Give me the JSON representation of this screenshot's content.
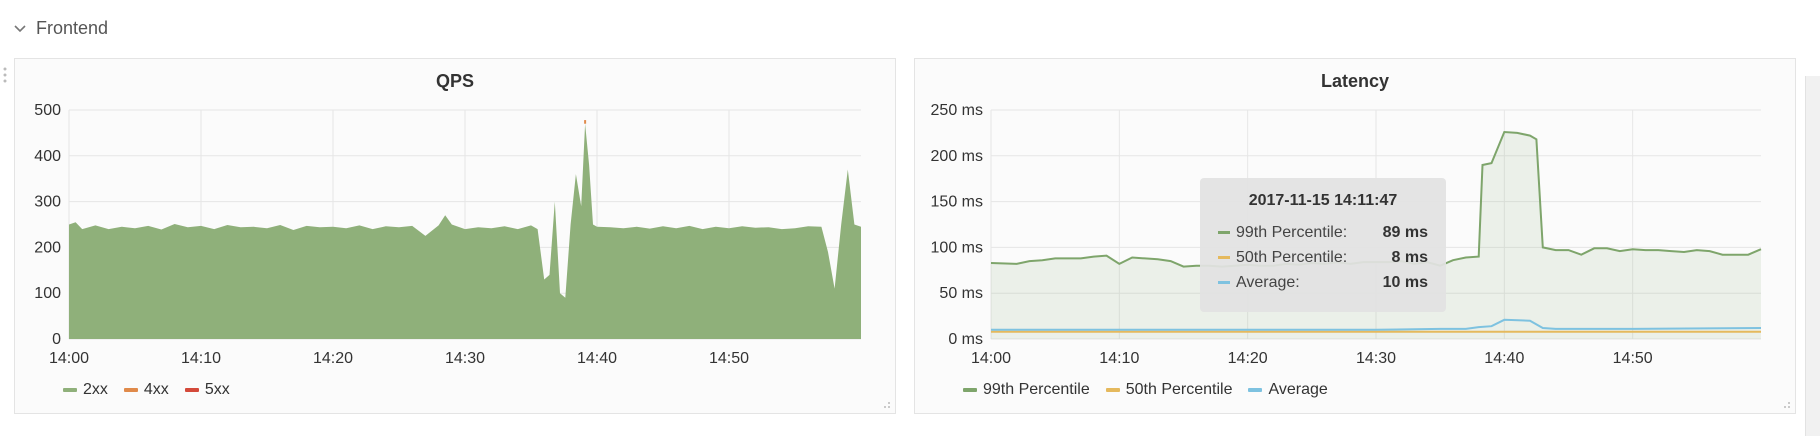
{
  "row": {
    "title": "Frontend",
    "icon": "chevron-down-icon"
  },
  "colors": {
    "s2xx": "#8fb07a",
    "s4xx": "#e08a4a",
    "s5xx": "#d44a3a",
    "p99": "#7ea56b",
    "p50": "#e5b95d",
    "avg": "#7ec2e0",
    "grid": "#e6e6e6",
    "axis": "#333333"
  },
  "qps": {
    "title": "QPS",
    "legend": [
      {
        "label": "2xx",
        "color": "#8fb07a"
      },
      {
        "label": "4xx",
        "color": "#e08a4a"
      },
      {
        "label": "5xx",
        "color": "#d44a3a"
      }
    ],
    "chart_data": {
      "type": "area",
      "title": "QPS",
      "xlabel": "",
      "ylabel": "",
      "x_ticks": [
        "14:00",
        "14:10",
        "14:20",
        "14:30",
        "14:40",
        "14:50"
      ],
      "y_ticks": [
        "0",
        "100",
        "200",
        "300",
        "400",
        "500"
      ],
      "ylim": [
        0,
        500
      ],
      "xlim_minutes": [
        0,
        60
      ],
      "grid": true,
      "legend_position": "bottom-left",
      "series": [
        {
          "name": "2xx",
          "x_minutes": [
            0,
            0.5,
            1,
            2,
            3,
            4,
            5,
            6,
            7,
            8,
            9,
            10,
            11,
            12,
            13,
            14,
            15,
            16,
            17,
            18,
            19,
            20,
            21,
            22,
            23,
            24,
            25,
            26,
            27,
            28,
            28.5,
            29,
            30,
            31,
            32,
            33,
            34,
            35,
            35.5,
            36,
            36.4,
            36.8,
            37.2,
            37.6,
            38,
            38.4,
            38.8,
            39.1,
            39.4,
            39.7,
            40,
            41,
            42,
            43,
            44,
            45,
            46,
            47,
            48,
            49,
            50,
            51,
            52,
            53,
            54,
            55,
            56,
            57,
            57.5,
            58,
            58.5,
            59,
            59.5,
            60
          ],
          "values": [
            250,
            255,
            240,
            248,
            240,
            245,
            242,
            247,
            239,
            251,
            244,
            247,
            240,
            249,
            244,
            245,
            242,
            249,
            238,
            247,
            244,
            245,
            242,
            248,
            240,
            246,
            244,
            247,
            225,
            248,
            270,
            250,
            240,
            244,
            242,
            246,
            240,
            248,
            240,
            130,
            140,
            300,
            100,
            90,
            250,
            360,
            290,
            470,
            380,
            250,
            245,
            244,
            242,
            245,
            241,
            246,
            242,
            247,
            240,
            245,
            242,
            246,
            243,
            244,
            240,
            242,
            246,
            245,
            190,
            110,
            250,
            370,
            250,
            245
          ]
        },
        {
          "name": "4xx",
          "values_note": "near zero",
          "peak_value": 478
        },
        {
          "name": "5xx",
          "values_note": "near zero"
        }
      ]
    }
  },
  "latency": {
    "title": "Latency",
    "legend": [
      {
        "label": "99th Percentile",
        "color": "#7ea56b"
      },
      {
        "label": "50th Percentile",
        "color": "#e5b95d"
      },
      {
        "label": "Average",
        "color": "#7ec2e0"
      }
    ],
    "chart_data": {
      "type": "line",
      "title": "Latency",
      "xlabel": "",
      "ylabel": "",
      "x_ticks": [
        "14:00",
        "14:10",
        "14:20",
        "14:30",
        "14:40",
        "14:50"
      ],
      "y_ticks": [
        "0 ms",
        "50 ms",
        "100 ms",
        "150 ms",
        "200 ms",
        "250 ms"
      ],
      "ylim": [
        0,
        250
      ],
      "xlim_minutes": [
        0,
        60
      ],
      "grid": true,
      "legend_position": "bottom-left",
      "series": [
        {
          "name": "99th Percentile",
          "fill": true,
          "x_minutes": [
            0,
            2,
            3,
            4,
            5,
            6,
            7,
            8,
            9,
            10,
            11,
            12,
            13,
            14,
            15,
            16,
            17,
            18,
            19,
            20,
            21,
            22,
            23,
            24,
            25,
            26,
            27,
            28,
            29,
            30,
            31,
            32,
            33,
            34,
            35,
            36,
            37,
            38,
            38.3,
            39,
            40,
            41,
            42,
            42.5,
            43,
            44,
            45,
            46,
            47,
            48,
            49,
            50,
            51,
            52,
            53,
            54,
            55,
            56,
            57,
            58,
            59,
            60
          ],
          "values": [
            83,
            82,
            85,
            86,
            88,
            88,
            88,
            90,
            91,
            82,
            89,
            88,
            87,
            85,
            79,
            80,
            80,
            79,
            80,
            81,
            80,
            80,
            82,
            81,
            83,
            82,
            84,
            82,
            84,
            84,
            84,
            85,
            82,
            84,
            80,
            86,
            89,
            90,
            190,
            192,
            226,
            225,
            222,
            218,
            100,
            97,
            97,
            92,
            99,
            99,
            96,
            98,
            97,
            97,
            96,
            95,
            97,
            96,
            92,
            92,
            92,
            98
          ]
        },
        {
          "name": "50th Percentile",
          "x_minutes": [
            0,
            60
          ],
          "values": [
            8,
            8
          ]
        },
        {
          "name": "Average",
          "x_minutes": [
            0,
            10,
            20,
            30,
            35,
            37,
            38,
            39,
            40,
            42,
            43,
            44,
            50,
            60
          ],
          "values": [
            10,
            10,
            10,
            10,
            11,
            11,
            13,
            14,
            21,
            20,
            12,
            11,
            11,
            12
          ]
        }
      ]
    },
    "tooltip": {
      "time": "2017-11-15 14:11:47",
      "rows": [
        {
          "label": "99th Percentile:",
          "value": "89 ms",
          "color": "#7ea56b"
        },
        {
          "label": "50th Percentile:",
          "value": "8 ms",
          "color": "#e5b95d"
        },
        {
          "label": "Average:",
          "value": "10 ms",
          "color": "#7ec2e0"
        }
      ]
    }
  }
}
